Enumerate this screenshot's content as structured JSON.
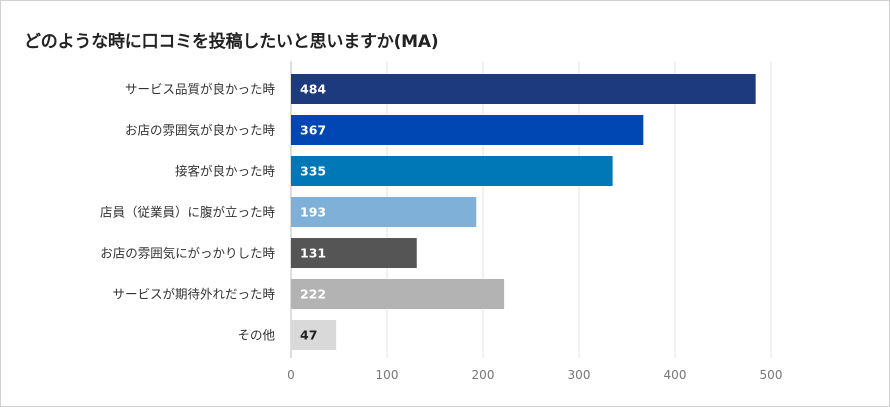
{
  "chart_data": {
    "type": "bar",
    "orientation": "horizontal",
    "title": "どのような時に口コミを投稿したいと思いますか(MA)",
    "categories": [
      "サービス品質が良かった時",
      "お店の雰囲気が良かった時",
      "接客が良かった時",
      "店員（従業員）に腹が立った時",
      "お店の雰囲気にがっかりした時",
      "サービスが期待外れだった時",
      "その他"
    ],
    "values": [
      484,
      367,
      335,
      193,
      131,
      222,
      47
    ],
    "value_labels": [
      "484",
      "367",
      "335",
      "193",
      "131",
      "222",
      "47"
    ],
    "colors": [
      "#1e3a7e",
      "#0047b3",
      "#0077b6",
      "#7fb1d8",
      "#555555",
      "#b3b3b3",
      "#d9d9d9"
    ],
    "label_colors": [
      "#ffffff",
      "#ffffff",
      "#ffffff",
      "#ffffff",
      "#ffffff",
      "#ffffff",
      "#222222"
    ],
    "xlim": [
      0,
      500
    ],
    "xticks": [
      0,
      100,
      200,
      300,
      400,
      500
    ],
    "xtick_labels": [
      "0",
      "100",
      "200",
      "300",
      "400",
      "500"
    ],
    "grid": "vertical",
    "xlabel": "",
    "ylabel": ""
  }
}
